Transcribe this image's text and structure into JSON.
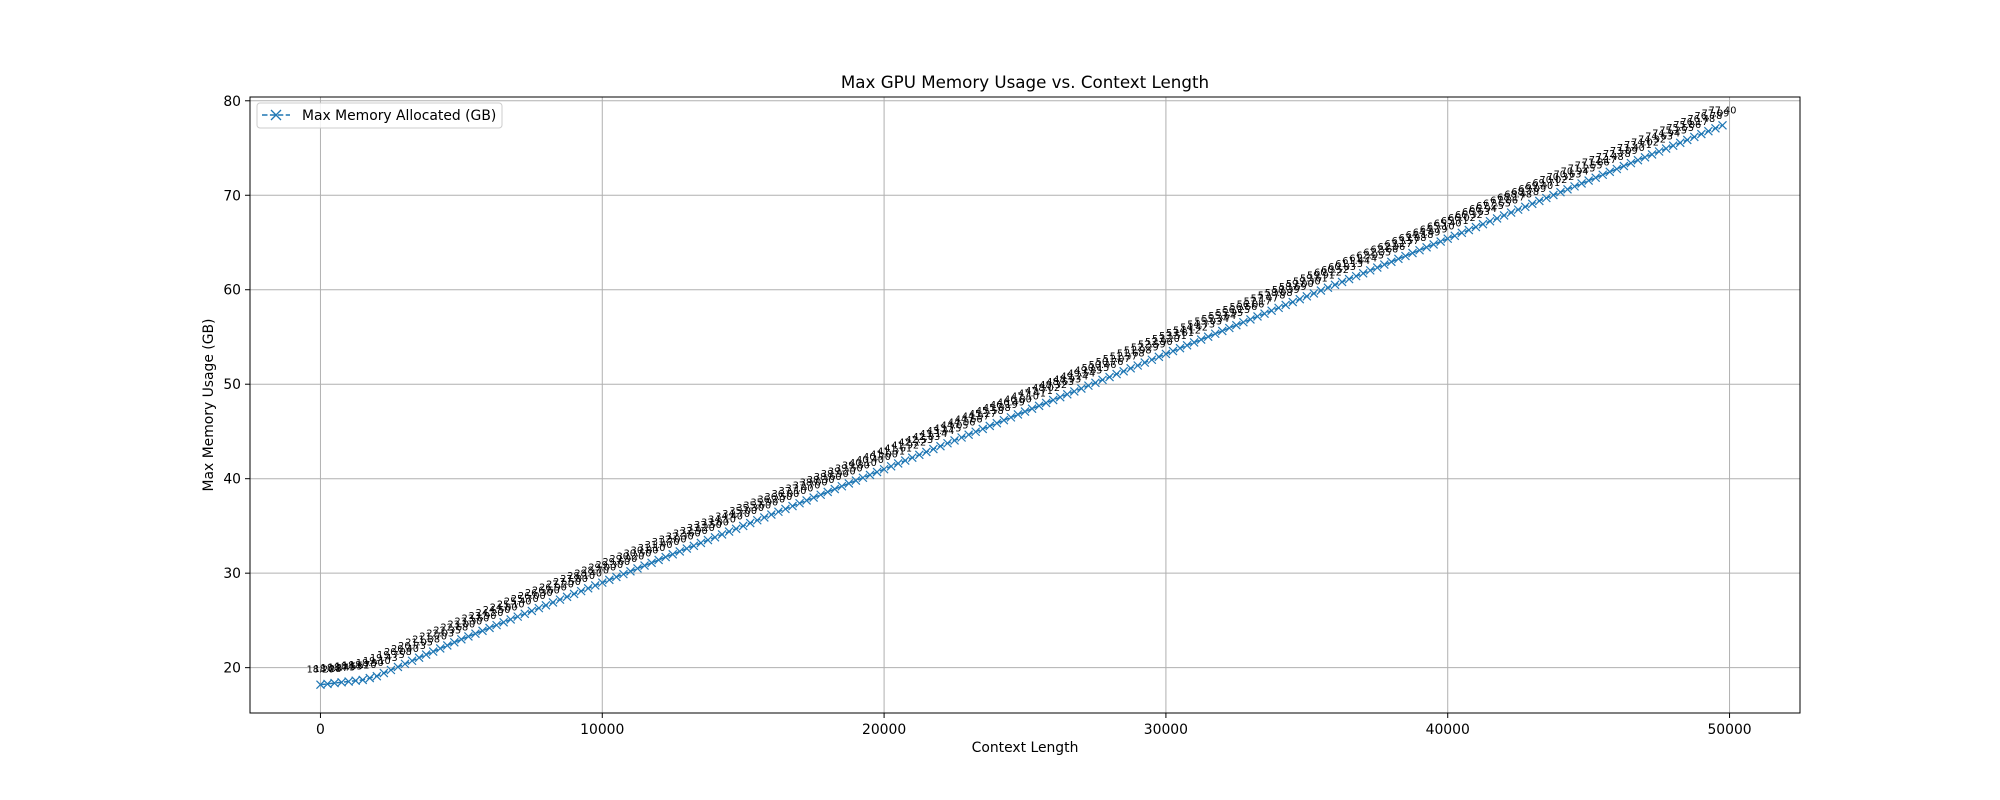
{
  "chart_data": {
    "type": "line",
    "title": "Max GPU Memory Usage vs. Context Length",
    "xlabel": "Context Length",
    "ylabel": "Max Memory Usage (GB)",
    "xlim": [
      -2500,
      52500
    ],
    "ylim": [
      15.2,
      80.4
    ],
    "xticks": [
      0,
      10000,
      20000,
      30000,
      40000,
      50000
    ],
    "xtick_labels": [
      "0",
      "10000",
      "20000",
      "30000",
      "40000",
      "50000"
    ],
    "yticks": [
      20,
      30,
      40,
      50,
      60,
      70,
      80
    ],
    "ytick_labels": [
      "20",
      "30",
      "40",
      "50",
      "60",
      "70",
      "80"
    ],
    "grid": true,
    "legend": "top-left",
    "data_labels": true,
    "marker": "x",
    "line_style": "dashed",
    "color": "#1f77b4",
    "series": [
      {
        "name": "Max Memory Allocated (GB)",
        "x_start": 0,
        "x_step": 250,
        "count": 200,
        "anchors": [
          [
            0,
            18.2
          ],
          [
            1500,
            18.7
          ],
          [
            2000,
            19.1
          ],
          [
            5000,
            23.0
          ],
          [
            20000,
            41.0
          ],
          [
            30000,
            53.2
          ],
          [
            40000,
            65.4
          ],
          [
            49750,
            77.4
          ]
        ]
      }
    ],
    "visible_point_labels": [
      {
        "x": 0,
        "text": "18.20"
      },
      {
        "x": 49750,
        "text": "77.40"
      }
    ]
  }
}
